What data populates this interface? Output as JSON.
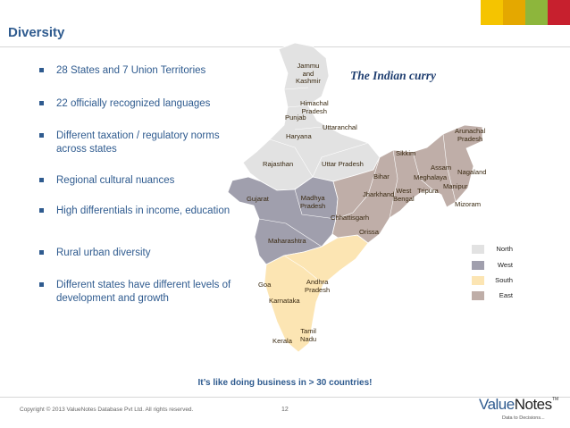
{
  "slide": {
    "title": "Diversity",
    "subtitle": "The Indian curry",
    "tagline": "It’s like doing business in > 30 countries!",
    "copyright": "Copyright © 2013 ValueNotes Database Pvt Ltd. All rights reserved.",
    "page_number": "12",
    "corner_colors": [
      "#F5C400",
      "#E4A800",
      "#8DB63C",
      "#C7202E"
    ]
  },
  "bullets": [
    "28 States and 7 Union Territories",
    "22 officially recognized languages",
    "Different taxation / regulatory norms across states",
    "Regional cultural nuances",
    "High differentials in income, education",
    "Rural urban diversity",
    "Different states have different levels of development and growth"
  ],
  "map": {
    "states": [
      {
        "name": "Jammu and Kashmir",
        "lines": [
          "Jammu",
          "and",
          "Kashmir"
        ],
        "region": "north"
      },
      {
        "name": "Himachal Pradesh",
        "lines": [
          "Himachal",
          "Pradesh"
        ],
        "region": "north"
      },
      {
        "name": "Punjab",
        "lines": [
          "Punjab"
        ],
        "region": "north"
      },
      {
        "name": "Uttaranchal",
        "lines": [
          "Uttaranchal"
        ],
        "region": "north"
      },
      {
        "name": "Haryana",
        "lines": [
          "Haryana"
        ],
        "region": "north"
      },
      {
        "name": "Rajasthan",
        "lines": [
          "Rajasthan"
        ],
        "region": "north"
      },
      {
        "name": "Uttar Pradesh",
        "lines": [
          "Uttar Pradesh"
        ],
        "region": "north"
      },
      {
        "name": "Gujarat",
        "lines": [
          "Gujarat"
        ],
        "region": "west"
      },
      {
        "name": "Madhya Pradesh",
        "lines": [
          "Madhya",
          "Pradesh"
        ],
        "region": "west"
      },
      {
        "name": "Chhattisgarh",
        "lines": [
          "Chhattisgarh"
        ],
        "region": "east"
      },
      {
        "name": "Maharashtra",
        "lines": [
          "Maharashtra"
        ],
        "region": "west"
      },
      {
        "name": "Goa",
        "lines": [
          "Goa"
        ],
        "region": "west"
      },
      {
        "name": "Karnataka",
        "lines": [
          "Karnataka"
        ],
        "region": "south"
      },
      {
        "name": "Andhra Pradesh",
        "lines": [
          "Andhra",
          "Pradesh"
        ],
        "region": "south"
      },
      {
        "name": "Kerala",
        "lines": [
          "Kerala"
        ],
        "region": "south"
      },
      {
        "name": "Tamil Nadu",
        "lines": [
          "Tamil",
          "Nadu"
        ],
        "region": "south"
      },
      {
        "name": "Orissa",
        "lines": [
          "Orissa"
        ],
        "region": "east"
      },
      {
        "name": "Jharkhand",
        "lines": [
          "Jharkhand"
        ],
        "region": "east"
      },
      {
        "name": "Bihar",
        "lines": [
          "Bihar"
        ],
        "region": "east"
      },
      {
        "name": "West Bengal",
        "lines": [
          "West",
          "Bengal"
        ],
        "region": "east"
      },
      {
        "name": "Sikkim",
        "lines": [
          "Sikkim"
        ],
        "region": "east"
      },
      {
        "name": "Assam",
        "lines": [
          "Assam"
        ],
        "region": "east"
      },
      {
        "name": "Meghalaya",
        "lines": [
          "Meghalaya"
        ],
        "region": "east"
      },
      {
        "name": "Arunachal Pradesh",
        "lines": [
          "Arunachal",
          "Pradesh"
        ],
        "region": "east"
      },
      {
        "name": "Nagaland",
        "lines": [
          "Nagaland"
        ],
        "region": "east"
      },
      {
        "name": "Manipur",
        "lines": [
          "Manipur"
        ],
        "region": "east"
      },
      {
        "name": "Tripura",
        "lines": [
          "Tripura"
        ],
        "region": "east"
      },
      {
        "name": "Mizoram",
        "lines": [
          "Mizoram"
        ],
        "region": "east"
      }
    ],
    "legend": [
      {
        "key": "north",
        "label": "North",
        "color": "#E2E2E2"
      },
      {
        "key": "west",
        "label": "West",
        "color": "#A09FAD"
      },
      {
        "key": "south",
        "label": "South",
        "color": "#FCE5B3"
      },
      {
        "key": "east",
        "label": "East",
        "color": "#BFAEA8"
      }
    ]
  },
  "logo": {
    "brand_first": "Value",
    "brand_second": "Notes",
    "trademark": "TM",
    "tagline": "Data to Decisions..."
  }
}
